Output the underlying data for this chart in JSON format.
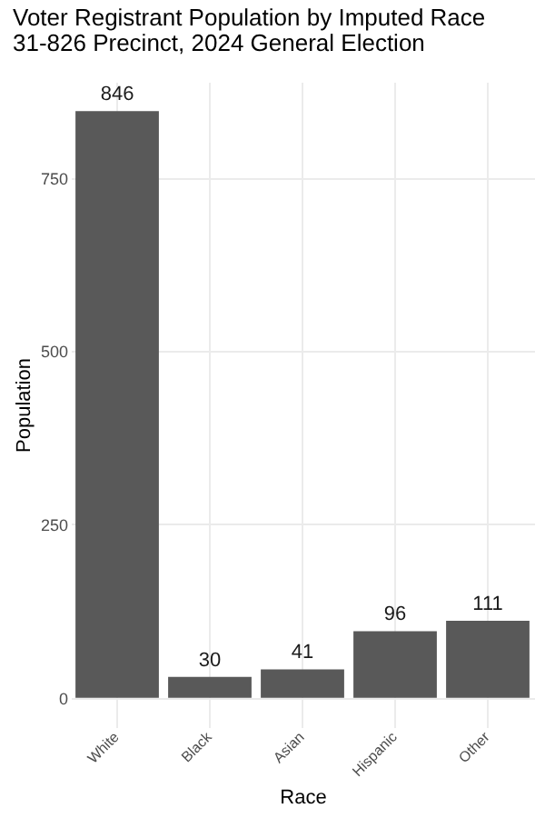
{
  "chart_data": {
    "type": "bar",
    "title": "Voter Registrant Population by Imputed Race",
    "subtitle": "31-826 Precinct,  2024 General Election",
    "xlabel": "Race",
    "ylabel": "Population",
    "categories": [
      "White",
      "Black",
      "Asian",
      "Hispanic",
      "Other"
    ],
    "values": [
      846,
      30,
      41,
      96,
      111
    ],
    "color": "#595959",
    "ylim": [
      -42.3,
      888.3
    ],
    "yticks": [
      0,
      250,
      500,
      750
    ],
    "grid": true,
    "data_labels": true
  }
}
